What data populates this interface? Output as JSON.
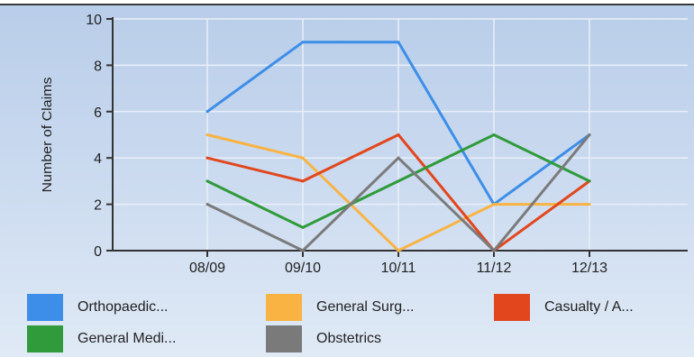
{
  "chart_data": {
    "type": "line",
    "categories": [
      "08/09",
      "09/10",
      "10/11",
      "11/12",
      "12/13"
    ],
    "ylabel": "Number of Claims",
    "xlabel": "",
    "title": "",
    "ylim": [
      0,
      10
    ],
    "yticks": [
      0,
      2,
      4,
      6,
      8,
      10
    ],
    "grid": true,
    "legend_position": "bottom",
    "series": [
      {
        "name": "Orthopaedic...",
        "color": "#3d8ee8",
        "values": [
          6,
          9,
          9,
          2,
          5
        ]
      },
      {
        "name": "General Surg...",
        "color": "#f9b343",
        "values": [
          5,
          4,
          0,
          2,
          2
        ]
      },
      {
        "name": "Casualty / A...",
        "color": "#e2461c",
        "values": [
          4,
          3,
          5,
          0,
          3
        ]
      },
      {
        "name": "General Medi...",
        "color": "#2f9b3a",
        "values": [
          3,
          1,
          3,
          5,
          3
        ]
      },
      {
        "name": "Obstetrics",
        "color": "#7a7a7a",
        "values": [
          2,
          0,
          4,
          0,
          5
        ]
      }
    ]
  }
}
